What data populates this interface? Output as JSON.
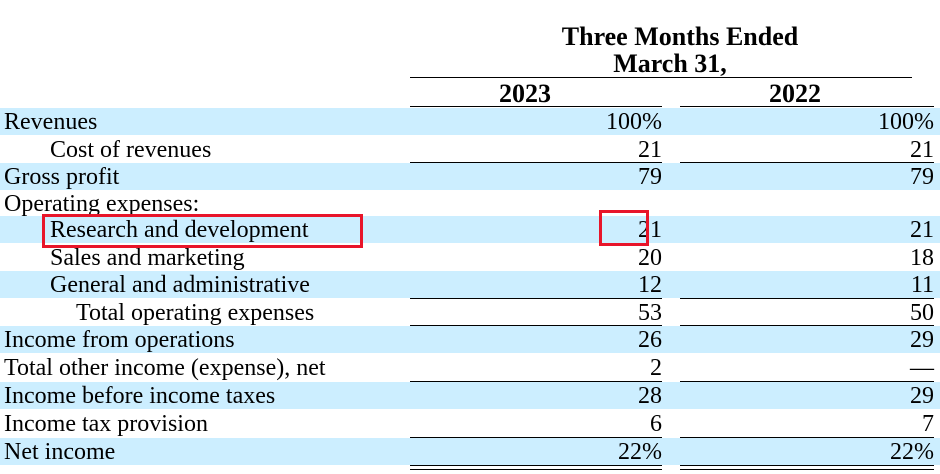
{
  "header": {
    "period_line1": "Three Months Ended",
    "period_line2": "March 31,",
    "col_2023": "2023",
    "col_2022": "2022"
  },
  "rows": [
    {
      "label": "Revenues",
      "v2023": "100%",
      "v2022": "100%"
    },
    {
      "label": "Cost of revenues",
      "v2023": "21",
      "v2022": "21"
    },
    {
      "label": "Gross profit",
      "v2023": "79",
      "v2022": "79"
    },
    {
      "label": "Operating expenses:",
      "v2023": "",
      "v2022": ""
    },
    {
      "label": "Research and development",
      "v2023": "21",
      "v2022": "21"
    },
    {
      "label": "Sales and marketing",
      "v2023": "20",
      "v2022": "18"
    },
    {
      "label": "General and administrative",
      "v2023": "12",
      "v2022": "11"
    },
    {
      "label": "Total operating expenses",
      "v2023": "53",
      "v2022": "50"
    },
    {
      "label": "Income from operations",
      "v2023": "26",
      "v2022": "29"
    },
    {
      "label": "Total other income (expense), net",
      "v2023": "2",
      "v2022": "—"
    },
    {
      "label": "Income before income taxes",
      "v2023": "28",
      "v2022": "29"
    },
    {
      "label": "Income tax provision",
      "v2023": "6",
      "v2022": "7"
    },
    {
      "label": "Net income",
      "v2023": "22%",
      "v2022": "22%"
    }
  ],
  "highlight_color": "#e8152a",
  "row_shade_color": "#cceeff",
  "chart_data": {
    "type": "table",
    "title": "Three Months Ended March 31,",
    "columns": [
      "2023",
      "2022"
    ],
    "rows": [
      [
        "Revenues",
        "100%",
        "100%"
      ],
      [
        "Cost of revenues",
        "21",
        "21"
      ],
      [
        "Gross profit",
        "79",
        "79"
      ],
      [
        "Operating expenses:",
        "",
        ""
      ],
      [
        "Research and development",
        "21",
        "21"
      ],
      [
        "Sales and marketing",
        "20",
        "18"
      ],
      [
        "General and administrative",
        "12",
        "11"
      ],
      [
        "Total operating expenses",
        "53",
        "50"
      ],
      [
        "Income from operations",
        "26",
        "29"
      ],
      [
        "Total other income (expense), net",
        "2",
        "—"
      ],
      [
        "Income before income taxes",
        "28",
        "29"
      ],
      [
        "Income tax provision",
        "6",
        "7"
      ],
      [
        "Net income",
        "22%",
        "22%"
      ]
    ],
    "highlighted": [
      {
        "row": "Research and development",
        "column": "label"
      },
      {
        "row": "Research and development",
        "column": "2023"
      }
    ]
  }
}
